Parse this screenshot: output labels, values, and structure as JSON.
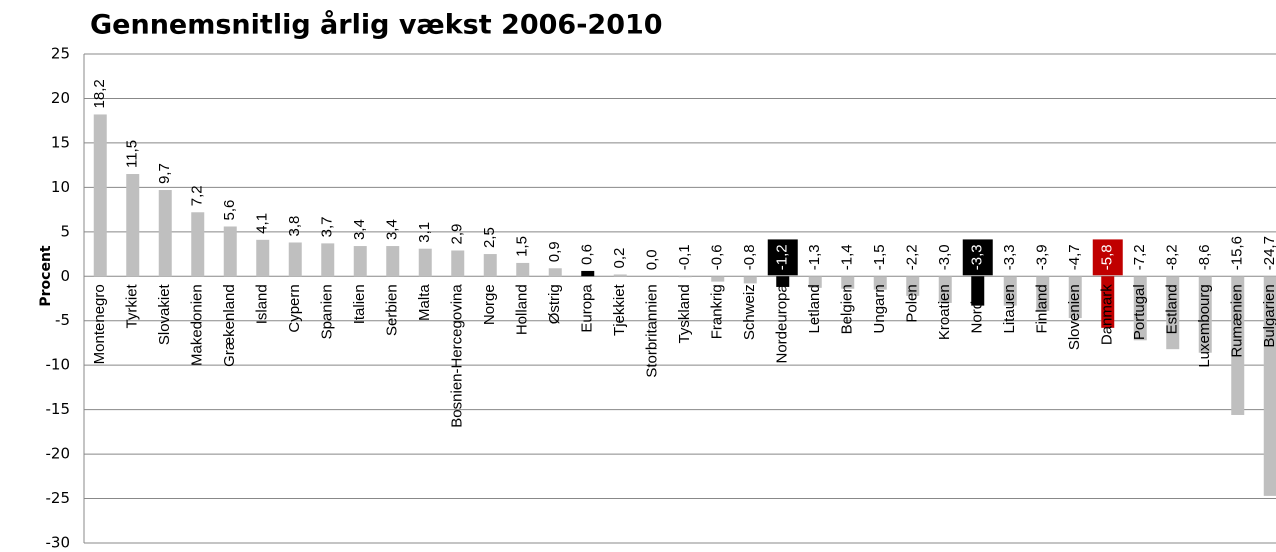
{
  "chart_data": {
    "type": "bar",
    "title": "Gennemsnitlig årlig vækst 2006-2010",
    "y_label": "Procent",
    "categories": [
      "Montenegro",
      "Tyrkiet",
      "Slovakiet",
      "Makedonien",
      "Grækenland",
      "Island",
      "Cypern",
      "Spanien",
      "Italien",
      "Serbien",
      "Malta",
      "Bosnien-Hercegovina",
      "Norge",
      "Holland",
      "Østrig",
      "Europa",
      "Tjekkiet",
      "Storbritannien",
      "Tyskland",
      "Frankrig",
      "Schweiz",
      "Nordeuropa",
      "Letland",
      "Belgien",
      "Ungarn",
      "Polen",
      "Kroatien",
      "Norden",
      "Litauen",
      "Finland",
      "Slovenien",
      "Danmark",
      "Portugal",
      "Estland",
      "Luxembourg",
      "Rumænien",
      "Bulgarien"
    ],
    "values": [
      18.2,
      11.5,
      9.7,
      7.2,
      5.6,
      4.1,
      3.8,
      3.7,
      3.4,
      3.4,
      3.1,
      2.9,
      2.5,
      1.5,
      0.9,
      0.6,
      0.2,
      0.0,
      -0.1,
      -0.6,
      -0.8,
      -1.2,
      -1.3,
      -1.4,
      -1.5,
      -2.2,
      -3.0,
      -3.3,
      -3.3,
      -3.9,
      -4.7,
      -5.8,
      -7.2,
      -8.2,
      -8.6,
      -15.6,
      -24.7
    ],
    "value_labels": [
      "18,2",
      "11,5",
      "9,7",
      "7,2",
      "5,6",
      "4,1",
      "3,8",
      "3,7",
      "3,4",
      "3,4",
      "3,1",
      "2,9",
      "2,5",
      "1,5",
      "0,9",
      "0,6",
      "0,2",
      "0,0",
      "-0,1",
      "-0,6",
      "-0,8",
      "-1,2",
      "-1,3",
      "-1,4",
      "-1,5",
      "-2,2",
      "-3,0",
      "-3,3",
      "-3,3",
      "-3,9",
      "-4,7",
      "-5,8",
      "-7,2",
      "-8,2",
      "-8,6",
      "-15,6",
      "-24,7"
    ],
    "color": "#bfbfbf",
    "colors": [
      "#bfbfbf",
      "#bfbfbf",
      "#bfbfbf",
      "#bfbfbf",
      "#bfbfbf",
      "#bfbfbf",
      "#bfbfbf",
      "#bfbfbf",
      "#bfbfbf",
      "#bfbfbf",
      "#bfbfbf",
      "#bfbfbf",
      "#bfbfbf",
      "#bfbfbf",
      "#bfbfbf",
      "#000000",
      "#bfbfbf",
      "#bfbfbf",
      "#bfbfbf",
      "#bfbfbf",
      "#bfbfbf",
      "#000000",
      "#bfbfbf",
      "#bfbfbf",
      "#bfbfbf",
      "#bfbfbf",
      "#bfbfbf",
      "#000000",
      "#bfbfbf",
      "#bfbfbf",
      "#bfbfbf",
      "#c00000",
      "#bfbfbf",
      "#bfbfbf",
      "#bfbfbf",
      "#bfbfbf",
      "#bfbfbf"
    ],
    "value_label_backgrounds": [
      null,
      null,
      null,
      null,
      null,
      null,
      null,
      null,
      null,
      null,
      null,
      null,
      null,
      null,
      null,
      null,
      null,
      null,
      null,
      null,
      null,
      "#000000",
      null,
      null,
      null,
      null,
      null,
      "#000000",
      null,
      null,
      null,
      "#c00000",
      null,
      null,
      null,
      null,
      null
    ],
    "ylim": [
      -30,
      25
    ],
    "yticks": [
      -30,
      -25,
      -20,
      -15,
      -10,
      -5,
      0,
      5,
      10,
      15,
      20,
      25
    ],
    "grid": true
  }
}
